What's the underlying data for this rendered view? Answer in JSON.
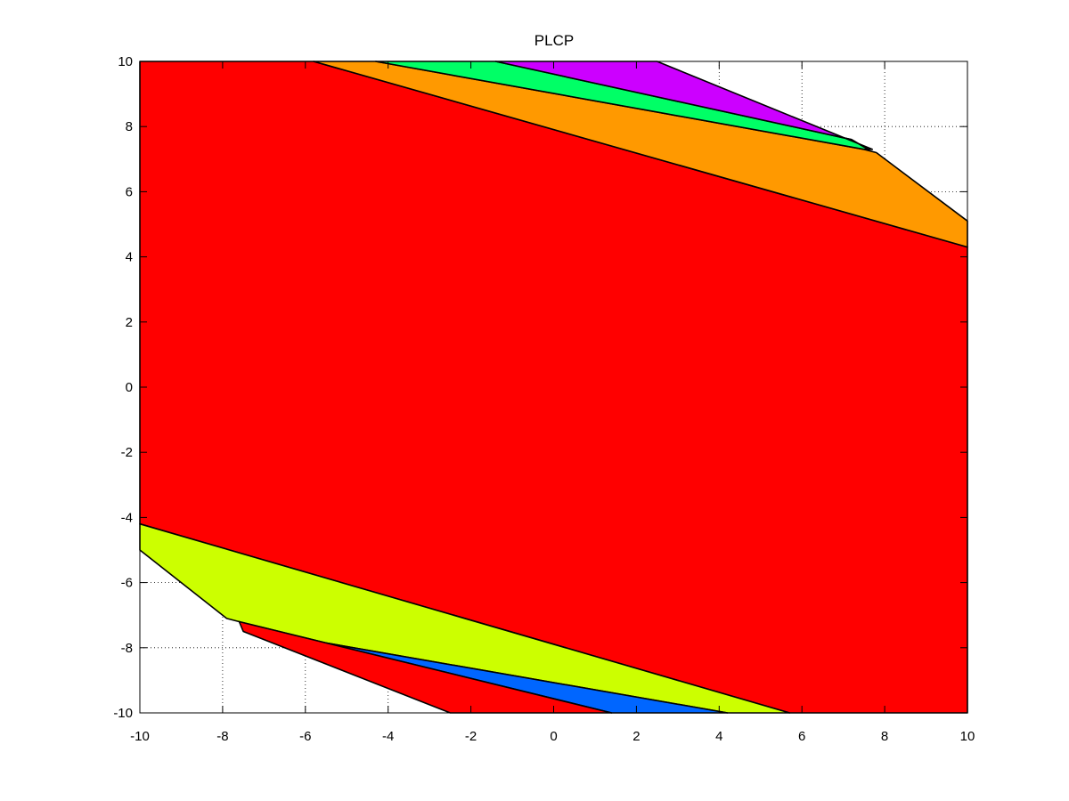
{
  "chart_data": {
    "type": "area",
    "title": "PLCP",
    "xlabel": "",
    "ylabel": "",
    "xlim": [
      -10,
      10
    ],
    "ylim": [
      -10,
      10
    ],
    "xticks": [
      -10,
      -8,
      -6,
      -4,
      -2,
      0,
      2,
      4,
      6,
      8,
      10
    ],
    "yticks": [
      -10,
      -8,
      -6,
      -4,
      -2,
      0,
      2,
      4,
      6,
      8,
      10
    ],
    "grid": true,
    "legend": "none",
    "regions": [
      {
        "color": "#ff0000",
        "vertices": [
          [
            -10,
            10
          ],
          [
            -5.8,
            10
          ],
          [
            10,
            4.3
          ],
          [
            10,
            -10
          ],
          [
            5.7,
            -10
          ],
          [
            -10,
            -4.2
          ]
        ]
      },
      {
        "color": "#ff9900",
        "vertices": [
          [
            -5.8,
            10
          ],
          [
            -4.3,
            10
          ],
          [
            7.5,
            7.3
          ],
          [
            7.8,
            7.2
          ],
          [
            10,
            5.1
          ],
          [
            10,
            4.3
          ]
        ]
      },
      {
        "color": "#00ff66",
        "vertices": [
          [
            -4.3,
            10
          ],
          [
            -1.4,
            10
          ],
          [
            7.2,
            7.6
          ],
          [
            7.6,
            7.3
          ],
          [
            7.5,
            7.3
          ]
        ]
      },
      {
        "color": "#cc00ff",
        "vertices": [
          [
            -1.4,
            10
          ],
          [
            2.5,
            10
          ],
          [
            7.7,
            7.3
          ],
          [
            7.6,
            7.3
          ],
          [
            7.2,
            7.6
          ]
        ]
      },
      {
        "color": "#ccff00",
        "vertices": [
          [
            -10,
            -4.2
          ],
          [
            5.7,
            -10
          ],
          [
            4.2,
            -10
          ],
          [
            -7.1,
            -7.5
          ],
          [
            -7.6,
            -7.2
          ],
          [
            -7.9,
            -7.1
          ],
          [
            -10,
            -5.0
          ]
        ]
      },
      {
        "color": "#0066ff",
        "vertices": [
          [
            -7.6,
            -7.2
          ],
          [
            -7.1,
            -7.5
          ],
          [
            4.2,
            -10
          ],
          [
            1.4,
            -10
          ]
        ]
      },
      {
        "color": "#ff0000",
        "vertices": [
          [
            -7.6,
            -7.2
          ],
          [
            1.4,
            -10
          ],
          [
            -2.5,
            -10
          ],
          [
            -7.5,
            -7.5
          ]
        ]
      }
    ]
  }
}
